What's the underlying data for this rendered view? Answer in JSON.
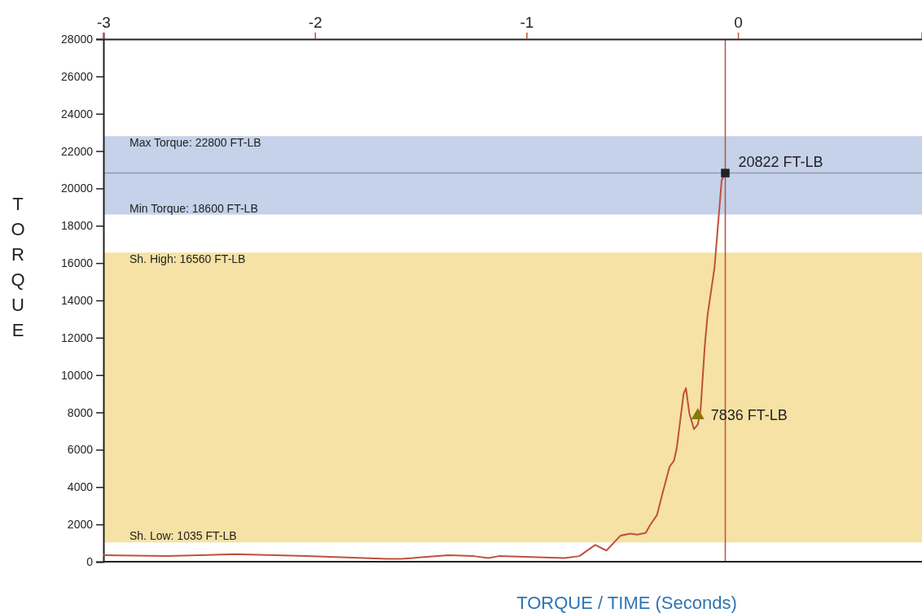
{
  "chart_data": {
    "type": "line",
    "xlabel": "TORQUE / TIME (Seconds)",
    "ylabel": "TORQUE",
    "xlim": [
      -3,
      0.87
    ],
    "xticks": [
      -3,
      -2,
      -1,
      0
    ],
    "ylim": [
      0,
      28000
    ],
    "yticks": [
      0,
      2000,
      4000,
      6000,
      8000,
      10000,
      12000,
      14000,
      16000,
      18000,
      20000,
      22000,
      24000,
      26000,
      28000
    ],
    "series": [
      {
        "color": "#c0503c",
        "x": [
          -3,
          -2.7,
          -2.38,
          -2.04,
          -1.66,
          -1.59,
          -1.37,
          -1.25,
          -1.18,
          -1.13,
          -0.82,
          -0.75,
          -0.675,
          -0.622,
          -0.555,
          -0.509,
          -0.476,
          -0.436,
          -0.416,
          -0.383,
          -0.356,
          -0.323,
          -0.303,
          -0.29,
          -0.257,
          -0.246,
          -0.23,
          -0.208,
          -0.19,
          -0.177,
          -0.157,
          -0.144,
          -0.111,
          -0.077,
          -0.06
        ],
        "values": [
          350,
          300,
          400,
          300,
          150,
          150,
          350,
          300,
          200,
          300,
          200,
          300,
          900,
          600,
          1400,
          1500,
          1450,
          1550,
          1950,
          2500,
          3700,
          5100,
          5400,
          6050,
          9000,
          9300,
          7950,
          7100,
          7350,
          8100,
          11550,
          13200,
          15750,
          20450,
          20800
        ]
      },
      {
        "type": "scatter",
        "marker": "square",
        "color": "#222222",
        "x": [
          -0.06
        ],
        "values": [
          20822
        ],
        "value_labels": [
          "20822 FT-LB"
        ]
      },
      {
        "type": "scatter",
        "marker": "triangle",
        "color": "#8a7a00",
        "x": [
          -0.19
        ],
        "values": [
          7836
        ],
        "value_labels": [
          "7836 FT-LB"
        ]
      }
    ],
    "bands": [
      {
        "axis": "y",
        "from": 18600,
        "to": 22800,
        "color": "#c5d2ea"
      },
      {
        "axis": "y",
        "from": 1035,
        "to": 16560,
        "color": "#f5e2a4"
      }
    ],
    "ref_lines": [
      {
        "axis": "y",
        "value": 20822,
        "color": "#8f9bb3"
      },
      {
        "axis": "x",
        "value": -0.06,
        "color": "#c0503c"
      }
    ],
    "annotations": [
      {
        "text": "Max Torque: 22800 FT-LB",
        "y": 22800
      },
      {
        "text": "Min Torque: 18600 FT-LB",
        "y": 18600
      },
      {
        "text": "Sh. High: 16560 FT-LB",
        "y": 16560
      },
      {
        "text": "Sh. Low: 1035 FT-LB",
        "y": 1035
      }
    ],
    "grid": false
  }
}
